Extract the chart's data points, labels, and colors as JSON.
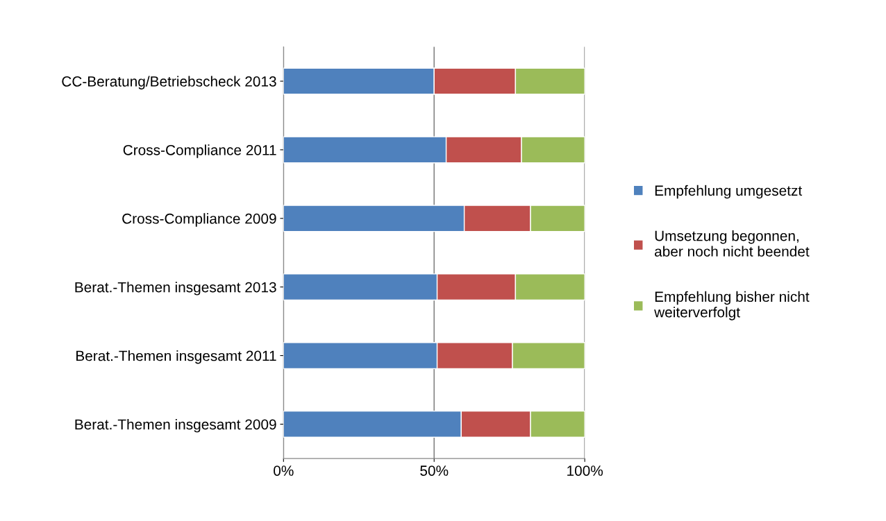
{
  "chart_data": {
    "type": "bar",
    "orientation": "horizontal",
    "stacked": true,
    "categories": [
      "CC-Beratung/Betriebscheck 2013",
      "Cross-Compliance 2011",
      "Cross-Compliance 2009",
      "Berat.-Themen insgesamt 2013",
      "Berat.-Themen insgesamt 2011",
      "Berat.-Themen insgesamt 2009"
    ],
    "series": [
      {
        "name": "Empfehlung umgesetzt",
        "color": "#4f81bd",
        "values": [
          50,
          54,
          60,
          51,
          51,
          59
        ]
      },
      {
        "name": "Umsetzung begonnen,\naber noch nicht beendet",
        "color": "#c0504d",
        "values": [
          27,
          25,
          22,
          26,
          25,
          23
        ]
      },
      {
        "name": "Empfehlung bisher nicht\nweiterverfolgt",
        "color": "#9bbb59",
        "values": [
          23,
          21,
          18,
          23,
          24,
          18
        ]
      }
    ],
    "xlim": [
      0,
      100
    ],
    "xticks": [
      {
        "value": 0,
        "label": "0%"
      },
      {
        "value": 50,
        "label": "50%"
      },
      {
        "value": 100,
        "label": "100%"
      }
    ],
    "grid": "x",
    "legend": "right"
  }
}
